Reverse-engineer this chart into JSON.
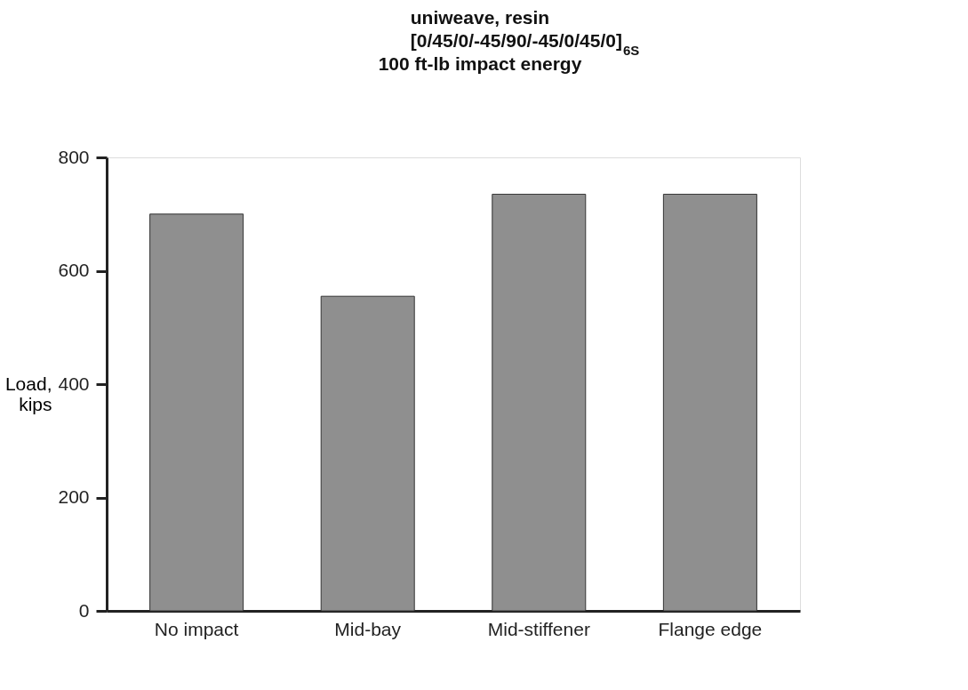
{
  "chart_data": {
    "type": "bar",
    "title": "uniweave, resin\n[0/45/0/-45/90/-45/0/45/0]$_{6S}$\n100 ft-lb impact energy",
    "ylabel": "Load,\nkips",
    "categories": [
      "No impact",
      "Mid-bay",
      "Mid-stiffener",
      "Flange edge"
    ],
    "values": [
      700,
      555,
      735,
      735
    ],
    "color": "#8f8f8f",
    "ylim": [
      0,
      800
    ],
    "yticks": [
      0,
      200,
      400,
      600,
      800
    ],
    "grid": false
  }
}
